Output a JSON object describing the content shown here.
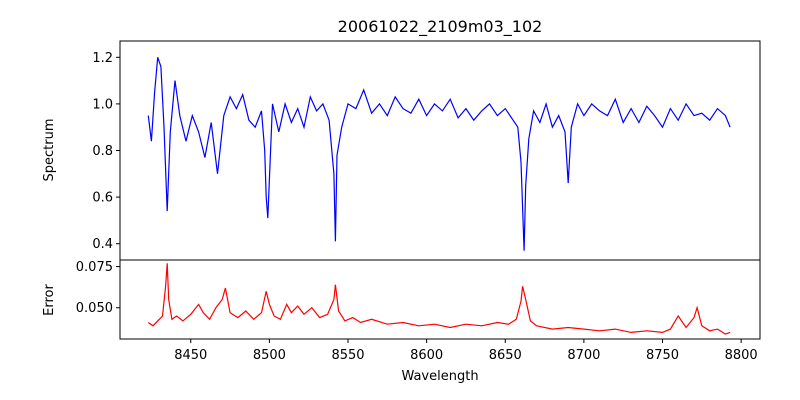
{
  "chart_data": [
    {
      "type": "line",
      "panel": "top",
      "title": "20061022_2109m03_102",
      "xlabel": "",
      "ylabel": "Spectrum",
      "xlim": [
        8405,
        8812
      ],
      "ylim": [
        0.33,
        1.27
      ],
      "yticks": [
        "0.4",
        "0.6",
        "0.8",
        "1.0",
        "1.2"
      ],
      "grid": false,
      "series": [
        {
          "color": "#0000ff",
          "x": [
            8423,
            8425,
            8427,
            8429,
            8431,
            8433,
            8435,
            8437,
            8440,
            8443,
            8447,
            8451,
            8455,
            8459,
            8463,
            8467,
            8471,
            8475,
            8479,
            8483,
            8487,
            8491,
            8495,
            8497,
            8498,
            8499,
            8502,
            8506,
            8510,
            8514,
            8518,
            8522,
            8526,
            8530,
            8534,
            8538,
            8541,
            8542,
            8543,
            8546,
            8550,
            8555,
            8560,
            8565,
            8570,
            8575,
            8580,
            8585,
            8590,
            8595,
            8600,
            8605,
            8610,
            8615,
            8620,
            8625,
            8630,
            8635,
            8640,
            8645,
            8650,
            8655,
            8658,
            8660,
            8662,
            8663,
            8665,
            8668,
            8672,
            8676,
            8680,
            8684,
            8688,
            8690,
            8692,
            8696,
            8700,
            8705,
            8710,
            8715,
            8720,
            8725,
            8730,
            8735,
            8740,
            8745,
            8750,
            8755,
            8760,
            8765,
            8770,
            8775,
            8780,
            8785,
            8790,
            8793
          ],
          "y": [
            0.95,
            0.84,
            1.05,
            1.2,
            1.16,
            0.9,
            0.54,
            0.88,
            1.1,
            0.95,
            0.84,
            0.95,
            0.88,
            0.77,
            0.92,
            0.7,
            0.95,
            1.03,
            0.98,
            1.04,
            0.93,
            0.9,
            0.97,
            0.8,
            0.6,
            0.51,
            1.0,
            0.88,
            1.0,
            0.92,
            0.98,
            0.9,
            1.03,
            0.97,
            1.0,
            0.93,
            0.7,
            0.41,
            0.78,
            0.9,
            1.0,
            0.98,
            1.06,
            0.96,
            1.0,
            0.95,
            1.03,
            0.98,
            0.96,
            1.02,
            0.95,
            1.0,
            0.97,
            1.02,
            0.94,
            0.98,
            0.93,
            0.97,
            1.0,
            0.95,
            0.98,
            0.93,
            0.9,
            0.75,
            0.37,
            0.65,
            0.85,
            0.97,
            0.92,
            1.0,
            0.9,
            0.95,
            0.88,
            0.66,
            0.9,
            1.0,
            0.95,
            1.0,
            0.97,
            0.95,
            1.02,
            0.92,
            0.98,
            0.92,
            0.99,
            0.95,
            0.9,
            0.98,
            0.93,
            1.0,
            0.95,
            0.96,
            0.93,
            0.98,
            0.95,
            0.9
          ]
        }
      ]
    },
    {
      "type": "line",
      "panel": "bottom",
      "title": "",
      "xlabel": "Wavelength",
      "ylabel": "Error",
      "xlim": [
        8405,
        8812
      ],
      "ylim": [
        0.031,
        0.079
      ],
      "xticks": [
        "8450",
        "8500",
        "8550",
        "8600",
        "8650",
        "8700",
        "8750",
        "8800"
      ],
      "yticks": [
        "0.050",
        "0.075"
      ],
      "grid": false,
      "series": [
        {
          "color": "#ff0000",
          "x": [
            8423,
            8426,
            8429,
            8432,
            8434,
            8435,
            8436,
            8438,
            8441,
            8445,
            8450,
            8455,
            8458,
            8462,
            8466,
            8470,
            8472,
            8475,
            8480,
            8485,
            8490,
            8495,
            8498,
            8500,
            8503,
            8507,
            8511,
            8514,
            8518,
            8522,
            8527,
            8532,
            8537,
            8541,
            8542,
            8544,
            8548,
            8553,
            8558,
            8565,
            8575,
            8585,
            8595,
            8605,
            8615,
            8625,
            8635,
            8645,
            8652,
            8657,
            8660,
            8661,
            8663,
            8666,
            8670,
            8680,
            8690,
            8700,
            8710,
            8720,
            8730,
            8740,
            8750,
            8755,
            8760,
            8765,
            8770,
            8772,
            8775,
            8780,
            8785,
            8790,
            8793
          ],
          "y": [
            0.041,
            0.039,
            0.042,
            0.045,
            0.063,
            0.077,
            0.055,
            0.043,
            0.045,
            0.042,
            0.046,
            0.052,
            0.047,
            0.043,
            0.05,
            0.055,
            0.062,
            0.047,
            0.044,
            0.048,
            0.043,
            0.047,
            0.06,
            0.052,
            0.045,
            0.043,
            0.052,
            0.047,
            0.051,
            0.046,
            0.05,
            0.044,
            0.046,
            0.055,
            0.064,
            0.048,
            0.042,
            0.044,
            0.041,
            0.043,
            0.04,
            0.041,
            0.039,
            0.04,
            0.038,
            0.04,
            0.039,
            0.041,
            0.04,
            0.043,
            0.054,
            0.063,
            0.055,
            0.042,
            0.039,
            0.037,
            0.038,
            0.037,
            0.036,
            0.037,
            0.035,
            0.036,
            0.035,
            0.037,
            0.045,
            0.038,
            0.044,
            0.05,
            0.039,
            0.036,
            0.037,
            0.034,
            0.035
          ]
        }
      ]
    }
  ]
}
